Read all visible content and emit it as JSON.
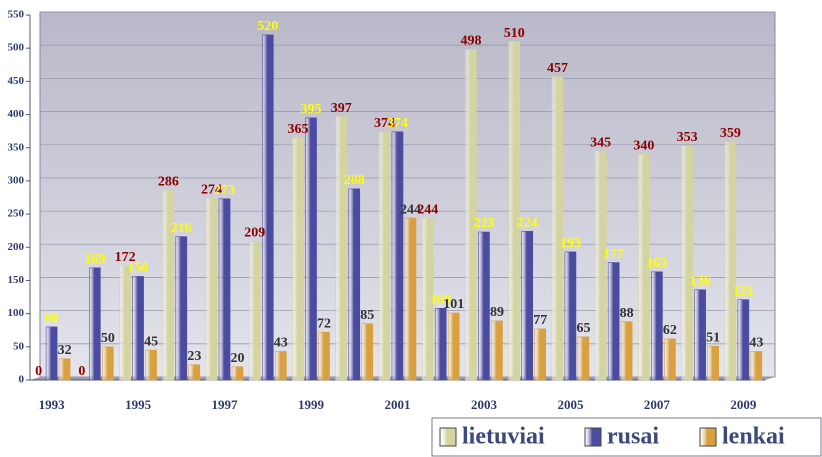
{
  "chart_data": {
    "type": "bar",
    "categories": [
      "1993",
      null,
      "1995",
      null,
      "1997",
      null,
      "1999",
      null,
      "2001",
      null,
      "2003",
      null,
      "2005",
      null,
      "2007",
      null,
      "2009"
    ],
    "series": [
      {
        "name": "lietuviai",
        "color": "#d4d4a0",
        "label_color": "#8b0000",
        "values": [
          0,
          0,
          172,
          286,
          274,
          209,
          365,
          397,
          374,
          244,
          498,
          510,
          457,
          345,
          340,
          353,
          359
        ]
      },
      {
        "name": "rusai",
        "color": "#4b4ba0",
        "label_color": "#ffff00",
        "values": [
          80,
          169,
          156,
          216,
          273,
          520,
          395,
          288,
          374,
          108,
          223,
          224,
          193,
          177,
          163,
          136,
          121
        ]
      },
      {
        "name": "lenkai",
        "color": "#d9a040",
        "label_color": "#333333",
        "values": [
          32,
          50,
          45,
          23,
          20,
          43,
          72,
          85,
          244,
          101,
          89,
          77,
          65,
          88,
          62,
          51,
          43
        ]
      }
    ],
    "ylim": [
      0,
      550
    ],
    "yticks": [
      0,
      50,
      100,
      150,
      200,
      250,
      300,
      350,
      400,
      450,
      500,
      550
    ],
    "grid": true,
    "legend": "bottom-right"
  }
}
